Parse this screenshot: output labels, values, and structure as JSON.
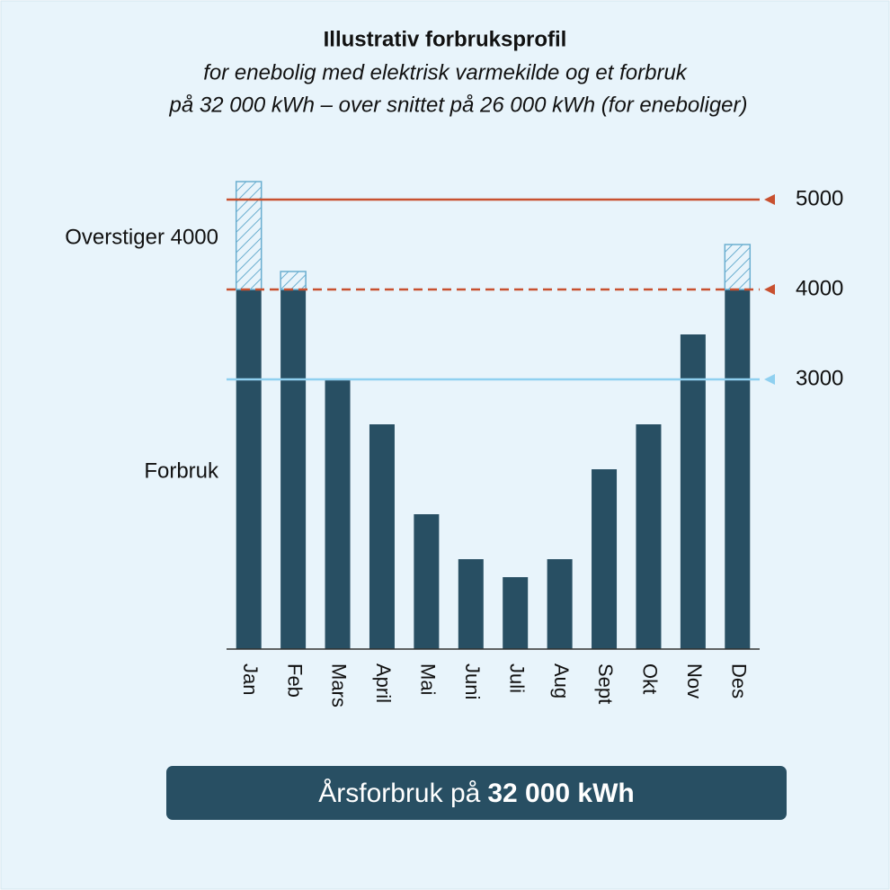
{
  "chart_data": {
    "type": "bar",
    "stacked": true,
    "title": "Illustrativ forbruksprofil",
    "subtitle": [
      "for enebolig med elektrisk varmekilde og et forbruk",
      "på 32 000 kWh – over snittet på 26 000 kWh (for eneboliger)"
    ],
    "categories": [
      "Jan",
      "Feb",
      "Mars",
      "April",
      "Mai",
      "Juni",
      "Juli",
      "Aug",
      "Sept",
      "Okt",
      "Nov",
      "Des"
    ],
    "series": [
      {
        "name": "Forbruk",
        "color": "#284f63",
        "values": [
          4000,
          4000,
          3000,
          2500,
          1500,
          1000,
          800,
          1000,
          2000,
          2500,
          3500,
          4000
        ]
      },
      {
        "name": "Overstiger 4000",
        "color": "#6aaed0",
        "hatch": true,
        "values": [
          1200,
          200,
          0,
          0,
          0,
          0,
          0,
          0,
          0,
          0,
          0,
          500
        ]
      }
    ],
    "ylim": [
      0,
      5200
    ],
    "yticks": [
      3000,
      4000,
      5000
    ],
    "reference_lines": [
      {
        "value": 5000,
        "color": "#c8502f",
        "style": "solid"
      },
      {
        "value": 4000,
        "color": "#c8502f",
        "style": "dashed"
      },
      {
        "value": 3000,
        "color": "#8fd0f0",
        "style": "solid"
      }
    ],
    "footer": {
      "text": "Årsforbruk på",
      "bold": "32 000 kWh"
    }
  }
}
